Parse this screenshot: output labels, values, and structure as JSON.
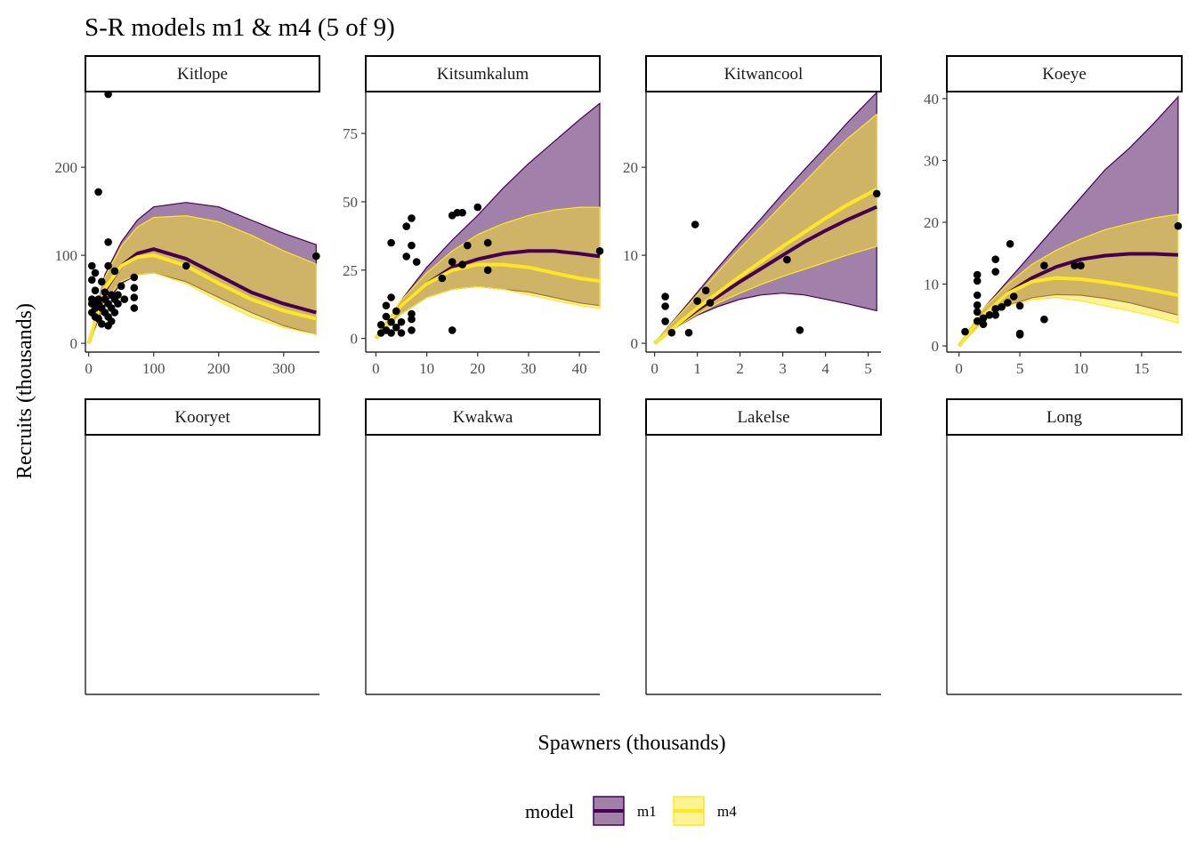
{
  "title": "S-R models m1 & m4 (5 of 9)",
  "x_axis_title": "Spawners (thousands)",
  "y_axis_title": "Recruits (thousands)",
  "legend": {
    "title": "model",
    "entries": [
      {
        "label": "m1",
        "fill": "#440154",
        "line": "#440154"
      },
      {
        "label": "m4",
        "fill": "#FDE725",
        "line": "#FDE725"
      }
    ]
  },
  "colors": {
    "m1": "#440154",
    "m4": "#FDE725",
    "points": "#000000"
  },
  "chart_data": [
    {
      "type": "line",
      "panel": "Kitlope",
      "xlim": [
        -5,
        355
      ],
      "ylim": [
        -10,
        285
      ],
      "xticks": [
        0,
        100,
        200,
        300
      ],
      "yticks": [
        0,
        100,
        200
      ],
      "m1": {
        "x": [
          0,
          25,
          50,
          75,
          100,
          150,
          200,
          250,
          300,
          350
        ],
        "y": [
          0,
          60,
          88,
          102,
          107,
          96,
          77,
          58,
          45,
          35
        ],
        "lower": [
          0,
          45,
          68,
          78,
          80,
          70,
          52,
          35,
          20,
          10
        ],
        "upper": [
          0,
          78,
          115,
          140,
          155,
          160,
          155,
          140,
          125,
          112
        ]
      },
      "m4": {
        "x": [
          0,
          25,
          50,
          75,
          100,
          150,
          200,
          250,
          300,
          350
        ],
        "y": [
          0,
          62,
          88,
          98,
          100,
          88,
          68,
          50,
          37,
          28
        ],
        "lower": [
          0,
          48,
          70,
          78,
          80,
          68,
          48,
          30,
          18,
          10
        ],
        "upper": [
          0,
          75,
          110,
          132,
          143,
          145,
          138,
          123,
          105,
          90
        ]
      },
      "points": [
        [
          30,
          283
        ],
        [
          15,
          172
        ],
        [
          30,
          115
        ],
        [
          5,
          88
        ],
        [
          30,
          88
        ],
        [
          10,
          80
        ],
        [
          40,
          82
        ],
        [
          5,
          72
        ],
        [
          20,
          70
        ],
        [
          70,
          75
        ],
        [
          50,
          65
        ],
        [
          70,
          63
        ],
        [
          10,
          60
        ],
        [
          25,
          58
        ],
        [
          35,
          55
        ],
        [
          45,
          55
        ],
        [
          5,
          50
        ],
        [
          15,
          50
        ],
        [
          25,
          50
        ],
        [
          40,
          50
        ],
        [
          55,
          50
        ],
        [
          70,
          52
        ],
        [
          5,
          45
        ],
        [
          15,
          45
        ],
        [
          30,
          45
        ],
        [
          45,
          45
        ],
        [
          10,
          40
        ],
        [
          20,
          40
        ],
        [
          35,
          40
        ],
        [
          70,
          40
        ],
        [
          5,
          35
        ],
        [
          25,
          35
        ],
        [
          40,
          35
        ],
        [
          10,
          30
        ],
        [
          30,
          30
        ],
        [
          15,
          28
        ],
        [
          35,
          25
        ],
        [
          20,
          22
        ],
        [
          30,
          20
        ],
        [
          150,
          88
        ],
        [
          350,
          99
        ]
      ]
    },
    {
      "type": "line",
      "panel": "Kitsumkalum",
      "xlim": [
        -2,
        44
      ],
      "ylim": [
        -5,
        90
      ],
      "xticks": [
        0,
        10,
        20,
        30,
        40
      ],
      "yticks": [
        0,
        25,
        50,
        75
      ],
      "m1": {
        "x": [
          0,
          5,
          10,
          15,
          20,
          25,
          30,
          35,
          40,
          44
        ],
        "y": [
          0,
          12,
          20,
          26,
          29,
          31,
          32,
          32,
          31,
          30
        ],
        "lower": [
          0,
          9,
          15,
          18,
          19,
          18,
          17,
          15,
          13,
          12
        ],
        "upper": [
          0,
          14,
          26,
          36,
          45,
          55,
          64,
          72,
          80,
          86
        ]
      },
      "m4": {
        "x": [
          0,
          5,
          10,
          15,
          20,
          25,
          30,
          35,
          40,
          44
        ],
        "y": [
          0,
          12,
          20,
          25,
          27,
          27,
          26,
          24,
          22,
          21
        ],
        "lower": [
          0,
          9,
          15,
          18,
          19,
          18,
          16,
          14,
          12,
          11
        ],
        "upper": [
          0,
          14,
          24,
          32,
          38,
          42,
          45,
          47,
          48,
          48
        ]
      },
      "points": [
        [
          1,
          5
        ],
        [
          1,
          2
        ],
        [
          2,
          8
        ],
        [
          2,
          3
        ],
        [
          2,
          12
        ],
        [
          3,
          15
        ],
        [
          3,
          6
        ],
        [
          3,
          2
        ],
        [
          4,
          10
        ],
        [
          4,
          4
        ],
        [
          5,
          2
        ],
        [
          5,
          6
        ],
        [
          6,
          41
        ],
        [
          7,
          44
        ],
        [
          6,
          30
        ],
        [
          7,
          34
        ],
        [
          3,
          35
        ],
        [
          8,
          28
        ],
        [
          7,
          9
        ],
        [
          7,
          3
        ],
        [
          7,
          7
        ],
        [
          13,
          22
        ],
        [
          15,
          45
        ],
        [
          16,
          46
        ],
        [
          15,
          28
        ],
        [
          17,
          46
        ],
        [
          17,
          27
        ],
        [
          18,
          34
        ],
        [
          20,
          48
        ],
        [
          22,
          35
        ],
        [
          22,
          25
        ],
        [
          15,
          3
        ],
        [
          44,
          32
        ]
      ]
    },
    {
      "type": "line",
      "panel": "Kitwancool",
      "xlim": [
        -0.2,
        5.3
      ],
      "ylim": [
        -1,
        28.5
      ],
      "xticks": [
        0,
        1,
        2,
        3,
        4,
        5
      ],
      "yticks": [
        0,
        10,
        20
      ],
      "m1": {
        "x": [
          0,
          0.5,
          1,
          1.5,
          2,
          2.5,
          3,
          3.5,
          4,
          4.5,
          5.2
        ],
        "y": [
          0,
          2,
          3.8,
          5.4,
          7,
          8.5,
          10,
          11.5,
          12.8,
          14,
          15.5
        ],
        "lower": [
          0,
          1.8,
          3.2,
          4.2,
          5,
          5.5,
          5.7,
          5.5,
          5,
          4.5,
          3.7
        ],
        "upper": [
          0,
          2.9,
          5.8,
          8.7,
          11.5,
          14.2,
          17,
          19.7,
          22.3,
          25,
          28.5
        ]
      },
      "m4": {
        "x": [
          0,
          0.5,
          1,
          1.5,
          2,
          2.5,
          3,
          3.5,
          4,
          4.5,
          5.2
        ],
        "y": [
          0,
          2,
          4,
          5.8,
          7.6,
          9.3,
          11,
          12.6,
          14.2,
          15.7,
          17.5
        ],
        "lower": [
          0,
          1.8,
          3.3,
          4.6,
          5.7,
          6.7,
          7.6,
          8.4,
          9.2,
          10,
          11
        ],
        "upper": [
          0,
          2.8,
          5.5,
          8.2,
          10.8,
          13.3,
          15.8,
          18.3,
          20.8,
          23.2,
          26
        ]
      },
      "points": [
        [
          0.25,
          5.3
        ],
        [
          0.25,
          4.2
        ],
        [
          0.25,
          2.5
        ],
        [
          0.4,
          1.2
        ],
        [
          0.8,
          1.2
        ],
        [
          0.95,
          13.5
        ],
        [
          1,
          4.8
        ],
        [
          1.2,
          6
        ],
        [
          1.3,
          4.6
        ],
        [
          3.1,
          9.5
        ],
        [
          3.4,
          1.5
        ],
        [
          5.2,
          17
        ]
      ]
    },
    {
      "type": "line",
      "panel": "Koeye",
      "xlim": [
        -1,
        18.3
      ],
      "ylim": [
        -1,
        41
      ],
      "xticks": [
        0,
        5,
        10,
        15
      ],
      "yticks": [
        0,
        10,
        20,
        30,
        40
      ],
      "m1": {
        "x": [
          0,
          2,
          4,
          6,
          8,
          10,
          12,
          14,
          16,
          18
        ],
        "y": [
          0,
          5,
          8.5,
          11,
          12.8,
          14,
          14.6,
          14.9,
          14.9,
          14.7
        ],
        "lower": [
          0,
          4,
          6.5,
          7.8,
          8.3,
          8.2,
          7.7,
          7,
          6,
          5
        ],
        "upper": [
          0,
          6,
          10.5,
          15,
          19.5,
          24,
          28.5,
          32,
          36,
          40.3
        ]
      },
      "m4": {
        "x": [
          0,
          2,
          4,
          6,
          8,
          10,
          12,
          14,
          16,
          18
        ],
        "y": [
          0,
          5,
          8.5,
          10.4,
          11,
          10.8,
          10.3,
          9.7,
          9,
          8.2
        ],
        "lower": [
          0,
          4,
          6.5,
          7.5,
          7.8,
          7.3,
          6.5,
          5.7,
          4.8,
          3.7
        ],
        "upper": [
          0,
          6,
          10,
          13.2,
          15.5,
          17.3,
          18.8,
          19.8,
          20.7,
          21.3
        ]
      },
      "points": [
        [
          0.5,
          2.3
        ],
        [
          1.5,
          11.5
        ],
        [
          1.5,
          10.5
        ],
        [
          1.5,
          8.2
        ],
        [
          1.5,
          6.6
        ],
        [
          1.5,
          5.5
        ],
        [
          1.5,
          4
        ],
        [
          2,
          3.5
        ],
        [
          2,
          4.5
        ],
        [
          2.5,
          5
        ],
        [
          3,
          6
        ],
        [
          3,
          12
        ],
        [
          3,
          14
        ],
        [
          3,
          5
        ],
        [
          3.5,
          6.3
        ],
        [
          4,
          7
        ],
        [
          4.2,
          16.5
        ],
        [
          4.5,
          8
        ],
        [
          5,
          6.5
        ],
        [
          5,
          2
        ],
        [
          5,
          1.8
        ],
        [
          7,
          13
        ],
        [
          7,
          4.3
        ],
        [
          9.5,
          13
        ],
        [
          10,
          13
        ],
        [
          18,
          19.4
        ]
      ]
    },
    {
      "type": "line",
      "panel": "Kooryet",
      "xlim": [
        -1,
        30.5
      ],
      "ylim": [
        -0.5,
        25
      ]
    },
    {
      "type": "line",
      "panel": "Kwakwa",
      "xlim": [
        -0.3,
        15.2
      ],
      "ylim": [
        -1,
        40
      ]
    },
    {
      "type": "line",
      "panel": "Lakelse",
      "xlim": [
        -2,
        90
      ],
      "ylim": [
        -2,
        83
      ]
    },
    {
      "type": "line",
      "panel": "Long",
      "xlim": [
        -5,
        265
      ],
      "ylim": [
        -20,
        1000
      ]
    }
  ]
}
